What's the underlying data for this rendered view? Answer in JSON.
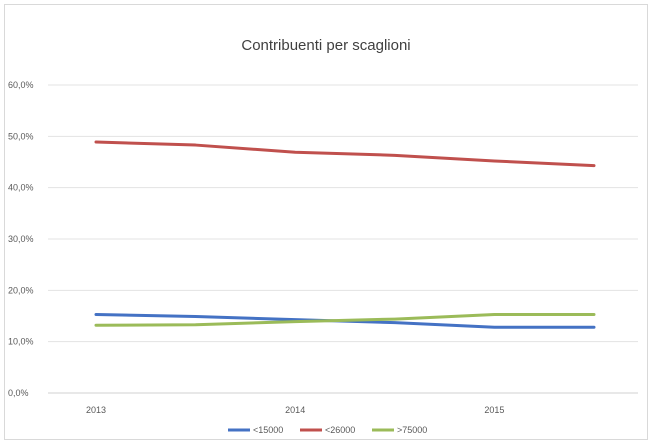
{
  "chart_data": {
    "type": "line",
    "title": "Contribuenti per scaglioni",
    "x": [
      "2013",
      "",
      "2014",
      "",
      "2015",
      ""
    ],
    "ylim": [
      0,
      60
    ],
    "y_ticks": [
      "0,0%",
      "10,0%",
      "20,0%",
      "30,0%",
      "40,0%",
      "50,0%",
      "60,0%"
    ],
    "x_tick_labels": [
      "2013",
      "2014",
      "2015"
    ],
    "grid": true,
    "legend": "bottom",
    "series": [
      {
        "name": "<15000",
        "color": "#4472c4",
        "values": [
          15.3,
          14.9,
          14.3,
          13.7,
          12.8,
          12.8
        ]
      },
      {
        "name": "<26000",
        "color": "#c0504d",
        "values": [
          48.9,
          48.3,
          46.9,
          46.3,
          45.2,
          44.3
        ]
      },
      {
        "name": ">75000",
        "color": "#9bbb59",
        "values": [
          13.2,
          13.3,
          13.9,
          14.4,
          15.3,
          15.3
        ]
      }
    ]
  }
}
